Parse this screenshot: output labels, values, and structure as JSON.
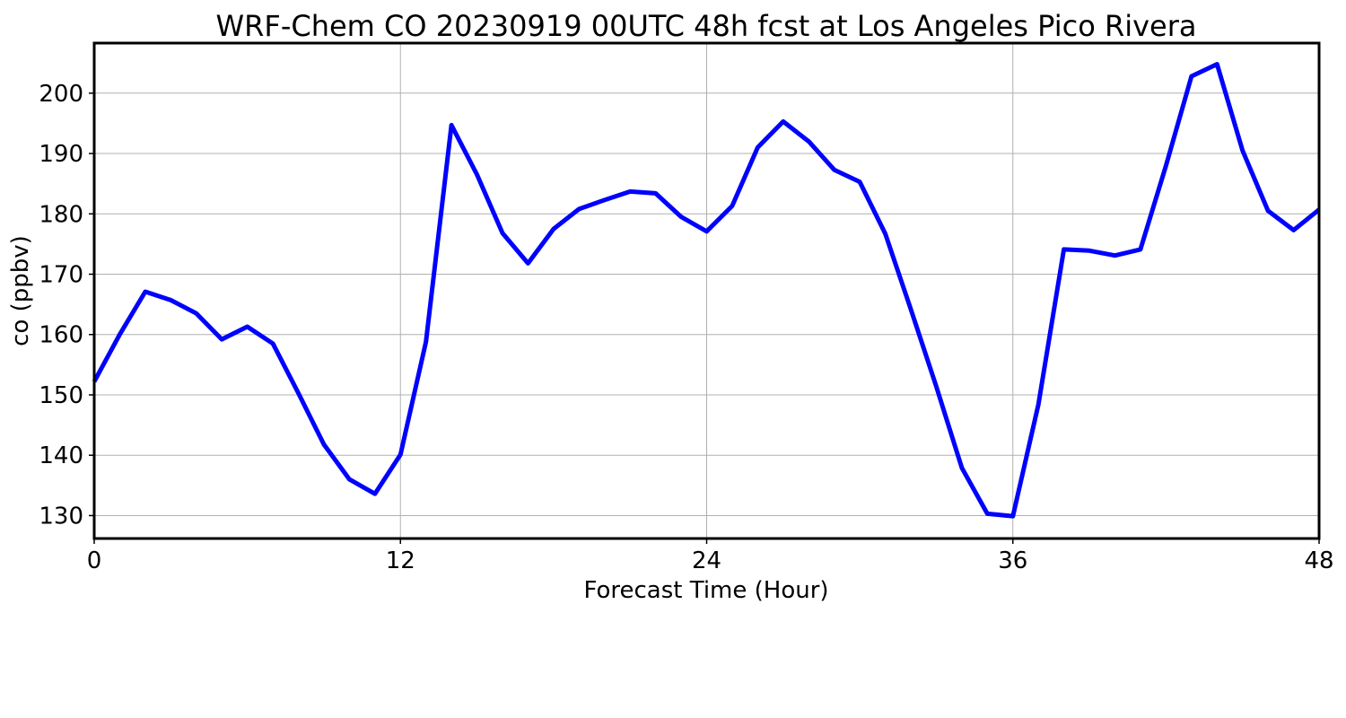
{
  "chart_data": {
    "type": "line",
    "title": "WRF-Chem CO  20230919 00UTC 48h fcst at Los Angeles Pico Rivera",
    "xlabel": "Forecast Time (Hour)",
    "ylabel": "co  (ppbv)",
    "xlim": [
      0,
      48
    ],
    "ylim": [
      126.2,
      208.3
    ],
    "xticks": [
      0,
      12,
      24,
      36,
      48
    ],
    "yticks": [
      130,
      140,
      150,
      160,
      170,
      180,
      190,
      200
    ],
    "grid": true,
    "line_color": "#0000ff",
    "series": [
      {
        "x": [
          0,
          1,
          2,
          3,
          4,
          5,
          6,
          7,
          8,
          9,
          10,
          11,
          12,
          13,
          14,
          15,
          16,
          17,
          18,
          19,
          20,
          21,
          22,
          23,
          24,
          25,
          26,
          27,
          28,
          29,
          30,
          31,
          32,
          33,
          34,
          35,
          36,
          37,
          38,
          39,
          40,
          41,
          42,
          43,
          44,
          45,
          46,
          47,
          48
        ],
        "values": [
          152.2,
          160.0,
          167.1,
          165.7,
          163.5,
          159.2,
          161.3,
          158.5,
          150.3,
          141.8,
          136.0,
          133.6,
          140.1,
          158.8,
          194.7,
          186.5,
          176.8,
          171.8,
          177.5,
          180.8,
          182.3,
          183.7,
          183.4,
          179.5,
          177.1,
          181.3,
          191.0,
          195.3,
          192.0,
          187.3,
          185.3,
          176.7,
          164.2,
          151.4,
          137.9,
          130.3,
          129.9,
          148.4,
          174.1,
          173.9,
          173.1,
          174.1,
          188.0,
          202.8,
          204.8,
          190.5,
          180.5,
          177.3,
          180.7
        ]
      }
    ]
  }
}
